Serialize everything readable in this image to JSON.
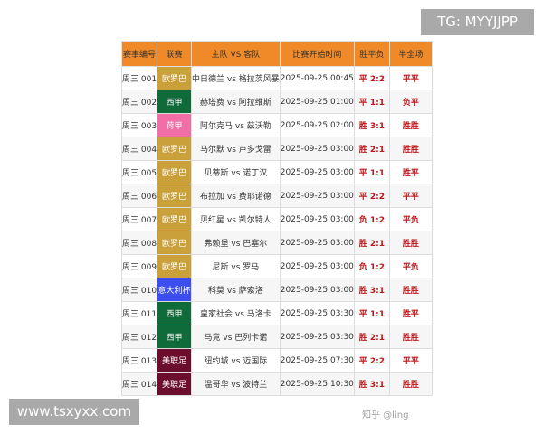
{
  "watermarks": {
    "tg": "TG: MYYJJPP",
    "site": "www.tsxyxx.com",
    "zhihu": "知乎 @ling"
  },
  "headers": [
    "赛事编号",
    "联赛",
    "主队 VS 客队",
    "比赛开始时间",
    "胜平负",
    "半全场"
  ],
  "league_colors": {
    "欧罗巴": "#c9a03a",
    "西甲": "#0f6b3a",
    "荷甲": "#ef6fa6",
    "意大利杯": "#3d4ef0",
    "美职足": "#6b0d2c"
  },
  "rows": [
    {
      "id": "周三 001",
      "league": "欧罗巴",
      "match": "中日德兰 vs 格拉茨风暴",
      "time": "2025-09-25 00:45",
      "result": "平 2:2",
      "half_full": "平平"
    },
    {
      "id": "周三 002",
      "league": "西甲",
      "match": "赫塔费 vs 阿拉维斯",
      "time": "2025-09-25 01:00",
      "result": "平 1:1",
      "half_full": "负平"
    },
    {
      "id": "周三 003",
      "league": "荷甲",
      "match": "阿尔克马 vs 兹沃勒",
      "time": "2025-09-25 02:00",
      "result": "胜 3:1",
      "half_full": "胜胜"
    },
    {
      "id": "周三 004",
      "league": "欧罗巴",
      "match": "马尔默 vs 卢多戈雷",
      "time": "2025-09-25 03:00",
      "result": "胜 2:1",
      "half_full": "胜胜"
    },
    {
      "id": "周三 005",
      "league": "欧罗巴",
      "match": "贝蒂斯 vs 诺丁汉",
      "time": "2025-09-25 03:00",
      "result": "平 1:1",
      "half_full": "胜平"
    },
    {
      "id": "周三 006",
      "league": "欧罗巴",
      "match": "布拉加 vs 费耶诺德",
      "time": "2025-09-25 03:00",
      "result": "平 2:2",
      "half_full": "平平"
    },
    {
      "id": "周三 007",
      "league": "欧罗巴",
      "match": "贝红星 vs 凯尔特人",
      "time": "2025-09-25 03:00",
      "result": "负 1:2",
      "half_full": "平负"
    },
    {
      "id": "周三 008",
      "league": "欧罗巴",
      "match": "弗赖堡 vs 巴塞尔",
      "time": "2025-09-25 03:00",
      "result": "胜 2:1",
      "half_full": "胜胜"
    },
    {
      "id": "周三 009",
      "league": "欧罗巴",
      "match": "尼斯 vs 罗马",
      "time": "2025-09-25 03:00",
      "result": "负 1:2",
      "half_full": "平负"
    },
    {
      "id": "周三 010",
      "league": "意大利杯",
      "match": "科莫 vs 萨索洛",
      "time": "2025-09-25 03:00",
      "result": "胜 3:1",
      "half_full": "胜胜"
    },
    {
      "id": "周三 011",
      "league": "西甲",
      "match": "皇家社会 vs 马洛卡",
      "time": "2025-09-25 03:30",
      "result": "平 1:1",
      "half_full": "胜平"
    },
    {
      "id": "周三 012",
      "league": "西甲",
      "match": "马竞 vs 巴列卡诺",
      "time": "2025-09-25 03:30",
      "result": "胜 2:1",
      "half_full": "胜胜"
    },
    {
      "id": "周三 013",
      "league": "美职足",
      "match": "纽约城 vs 迈国际",
      "time": "2025-09-25 07:30",
      "result": "平 2:2",
      "half_full": "平平"
    },
    {
      "id": "周三 014",
      "league": "美职足",
      "match": "温哥华 vs 波特兰",
      "time": "2025-09-25 10:30",
      "result": "胜 3:1",
      "half_full": "胜胜"
    }
  ]
}
